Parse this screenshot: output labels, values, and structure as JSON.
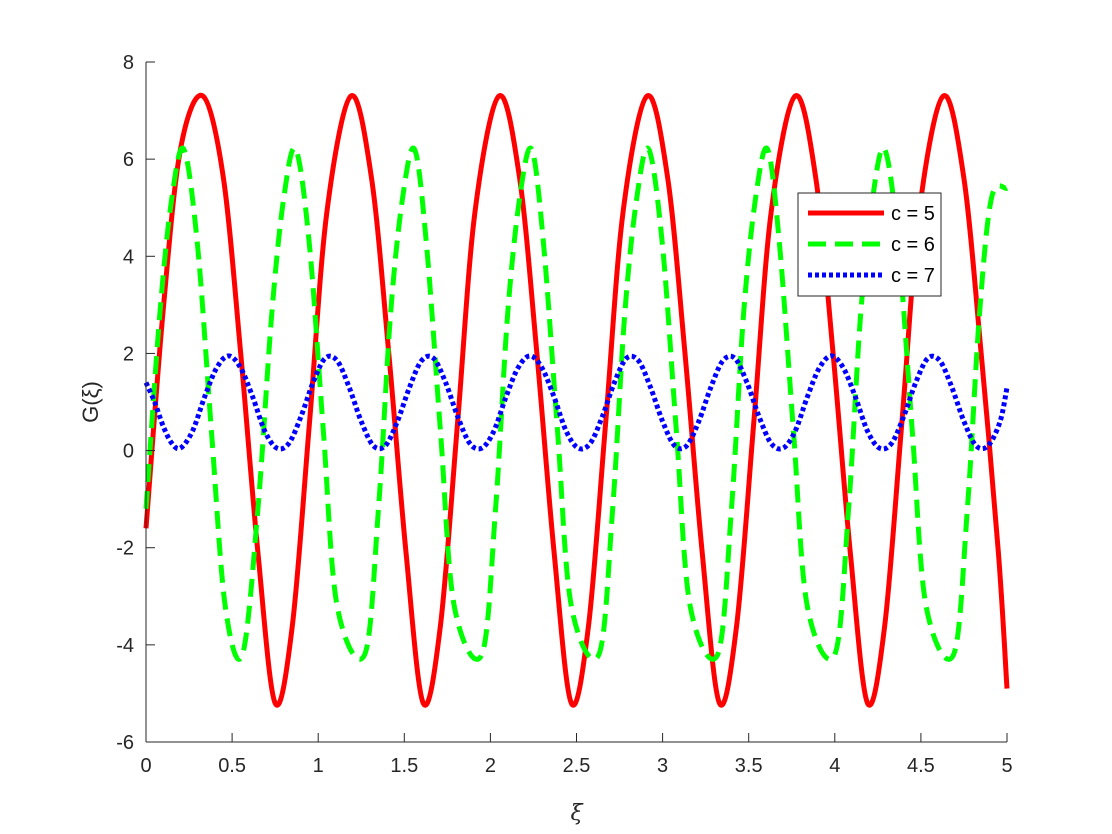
{
  "chart_data": {
    "type": "line",
    "xlabel": "ξ",
    "ylabel": "G(ξ)",
    "xlim": [
      0,
      5
    ],
    "ylim": [
      -6,
      8
    ],
    "xticks": [
      "0",
      "0.5",
      "1",
      "1.5",
      "2",
      "2.5",
      "3",
      "3.5",
      "4",
      "4.5",
      "5"
    ],
    "yticks": [
      "-6",
      "-4",
      "-2",
      "0",
      "2",
      "4",
      "6",
      "8"
    ],
    "grid": false,
    "legend_position": "top-right",
    "series": [
      {
        "name": "c = 5",
        "color": "#ff0000",
        "style": "solid",
        "x": [
          0,
          0.1,
          0.2,
          0.33,
          0.45,
          0.55,
          0.65,
          0.75,
          0.85,
          0.95,
          1.05,
          1.19,
          1.31,
          1.41,
          1.51,
          1.61,
          1.71,
          1.81,
          1.91,
          2.05,
          2.17,
          2.27,
          2.37,
          2.47,
          2.57,
          2.67,
          2.77,
          2.91,
          3.03,
          3.13,
          3.23,
          3.33,
          3.43,
          3.53,
          3.63,
          3.77,
          3.89,
          3.99,
          4.09,
          4.19,
          4.29,
          4.39,
          4.49,
          4.63,
          4.75,
          4.85,
          4.95,
          5.0
        ],
        "y": [
          -1.6,
          2.9,
          6.2,
          7.3,
          5.6,
          2.0,
          -2.1,
          -5.2,
          -3.6,
          0.6,
          4.9,
          7.3,
          5.6,
          2.0,
          -2.1,
          -5.2,
          -3.6,
          0.6,
          4.9,
          7.3,
          5.6,
          2.0,
          -2.1,
          -5.2,
          -3.6,
          0.6,
          4.9,
          7.3,
          5.6,
          2.0,
          -2.1,
          -5.2,
          -3.6,
          0.6,
          4.9,
          7.3,
          5.6,
          2.0,
          -2.1,
          -5.2,
          -3.6,
          0.6,
          4.9,
          7.3,
          5.6,
          2.0,
          -2.1,
          -4.9
        ]
      },
      {
        "name": "c = 6",
        "color": "#00ff00",
        "style": "dashed",
        "x": [
          0,
          0.08,
          0.15,
          0.22,
          0.3,
          0.38,
          0.46,
          0.56,
          0.65,
          0.73,
          0.8,
          0.87,
          0.95,
          1.03,
          1.11,
          1.27,
          1.35,
          1.42,
          1.49,
          1.56,
          1.63,
          1.71,
          1.79,
          1.95,
          2.03,
          2.1,
          2.17,
          2.24,
          2.31,
          2.39,
          2.47,
          2.63,
          2.71,
          2.78,
          2.85,
          2.92,
          3.0,
          3.08,
          3.16,
          3.32,
          3.4,
          3.47,
          3.54,
          3.61,
          3.68,
          3.76,
          3.84,
          4.0,
          4.08,
          4.15,
          4.22,
          4.29,
          4.37,
          4.45,
          4.53,
          4.69,
          4.77,
          4.84,
          4.91,
          5.0
        ],
        "y": [
          -1.2,
          2.8,
          5.2,
          6.2,
          4.2,
          0.4,
          -3.2,
          -4.2,
          -1.2,
          2.8,
          5.2,
          6.2,
          4.2,
          0.4,
          -3.2,
          -4.2,
          -1.2,
          2.8,
          5.2,
          6.2,
          4.2,
          0.4,
          -3.2,
          -4.2,
          -1.2,
          2.8,
          5.2,
          6.2,
          4.2,
          0.4,
          -3.2,
          -4.2,
          -1.2,
          2.8,
          5.2,
          6.2,
          4.2,
          0.4,
          -3.2,
          -4.2,
          -1.2,
          2.8,
          5.2,
          6.2,
          4.2,
          0.4,
          -3.2,
          -4.2,
          -1.2,
          2.8,
          5.2,
          6.2,
          4.2,
          0.4,
          -3.2,
          -4.2,
          -1.2,
          2.8,
          5.2,
          5.4
        ]
      },
      {
        "name": "c = 7",
        "color": "#0000ff",
        "style": "dotted",
        "x": [
          0,
          0.05,
          0.1,
          0.15,
          0.2,
          0.27,
          0.34,
          0.41,
          0.48,
          0.55,
          0.62,
          0.69,
          0.76,
          0.83,
          0.9,
          0.97,
          1.04,
          1.11,
          1.18,
          1.25,
          1.32,
          1.39,
          1.46,
          1.53,
          1.6,
          1.67,
          1.74,
          1.81,
          1.88,
          1.95,
          2.02,
          2.09,
          2.16,
          2.23,
          2.3,
          2.37,
          2.44,
          2.51,
          2.58,
          2.65,
          2.72,
          2.79,
          2.86,
          2.93,
          3.0,
          3.07,
          3.14,
          3.21,
          3.28,
          3.35,
          3.42,
          3.49,
          3.56,
          3.63,
          3.7,
          3.77,
          3.84,
          3.91,
          3.98,
          4.05,
          4.12,
          4.19,
          4.26,
          4.33,
          4.4,
          4.47,
          4.54,
          4.61,
          4.68,
          4.75,
          4.82,
          4.89,
          4.96,
          5.0
        ],
        "y": [
          1.4,
          1.0,
          0.5,
          0.15,
          0.05,
          0.4,
          1.1,
          1.7,
          1.95,
          1.7,
          1.1,
          0.4,
          0.05,
          0.15,
          0.7,
          1.4,
          1.9,
          1.85,
          1.3,
          0.6,
          0.1,
          0.1,
          0.6,
          1.3,
          1.85,
          1.9,
          1.4,
          0.7,
          0.15,
          0.05,
          0.4,
          1.1,
          1.7,
          1.95,
          1.7,
          1.1,
          0.4,
          0.05,
          0.15,
          0.7,
          1.4,
          1.9,
          1.85,
          1.3,
          0.6,
          0.1,
          0.1,
          0.6,
          1.3,
          1.85,
          1.9,
          1.4,
          0.7,
          0.15,
          0.05,
          0.4,
          1.1,
          1.7,
          1.95,
          1.7,
          1.1,
          0.4,
          0.05,
          0.15,
          0.7,
          1.4,
          1.9,
          1.85,
          1.3,
          0.6,
          0.1,
          0.1,
          0.6,
          1.3
        ]
      }
    ]
  }
}
